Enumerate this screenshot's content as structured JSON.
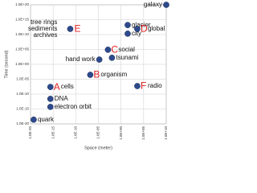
{
  "chart_data": {
    "type": "scatter",
    "x_label": "Space (meter)",
    "y_label": "Time (second)",
    "log_x": true,
    "log_y": true,
    "grid": true,
    "point_color": "#2e4a8c",
    "xlim": [
      1e-20,
      10000000000.0
    ],
    "ylim": [
      1e-20,
      1e+20
    ],
    "xticks": [
      {
        "value": 1e-20,
        "label": "1.0E-20"
      },
      {
        "value": 1e-15,
        "label": "1.0E-15"
      },
      {
        "value": 1e-10,
        "label": "1.0E-10"
      },
      {
        "value": 1e-05,
        "label": "1.0E-05"
      },
      {
        "value": 1,
        "label": "1.0E+00"
      },
      {
        "value": 100000.0,
        "label": "1.0E+05"
      },
      {
        "value": 10000000000.0,
        "label": "1.0E+10"
      }
    ],
    "yticks": [
      {
        "value": 1e-20,
        "label": "1.0E-20"
      },
      {
        "value": 1e-15,
        "label": "1.0E-15"
      },
      {
        "value": 1e-10,
        "label": "1.0E-10"
      },
      {
        "value": 1e-05,
        "label": "1.0E-05"
      },
      {
        "value": 1,
        "label": "1.0E+00"
      },
      {
        "value": 100000.0,
        "label": "1.0E+05"
      },
      {
        "value": 10000000000.0,
        "label": "1.0E+10"
      },
      {
        "value": 1000000000000000.0,
        "label": "1.0E+15"
      },
      {
        "value": 1e+20,
        "label": "1.0E+20"
      }
    ],
    "x": [
      10000000000.0,
      30.0,
      30.0,
      4000.0,
      6e-12,
      1.6e-05,
      0.0013,
      0.01,
      1.6e-07,
      2.5e-16,
      4000.0,
      2.5e-16,
      2.5e-16,
      5e-20
    ],
    "y": [
      1e+20,
      16000000000000.0,
      20000000000.0,
      800000000000.0,
      800000000000.0,
      40.0,
      80000.0,
      160.0,
      0.0003,
      2.5e-08,
      5e-08,
      2.5e-12,
      5e-15,
      2.5e-19
    ],
    "point_labels": [
      "galaxy",
      "glacier",
      "city",
      "global",
      [
        "tree rings",
        "sediments",
        "archives"
      ],
      "hand work",
      "social",
      "tsunami",
      "organism",
      "cells",
      "radio",
      "DNA",
      "electron orbit",
      "quark"
    ],
    "letters": [
      null,
      null,
      null,
      "D",
      "E",
      null,
      "C",
      null,
      "B",
      "A",
      "F",
      null,
      null,
      null
    ],
    "label_position": [
      "left",
      "right",
      "right",
      "right",
      "left",
      "left",
      "right",
      "right",
      "right",
      "right",
      "right",
      "right",
      "right",
      "right"
    ],
    "label_colors": [
      "#111",
      "#111",
      "#111",
      "#111",
      "#111",
      "#2a4fa8",
      "#111",
      "#111",
      "#111",
      "#111",
      "#111",
      "#111",
      "#111",
      "#111"
    ]
  }
}
